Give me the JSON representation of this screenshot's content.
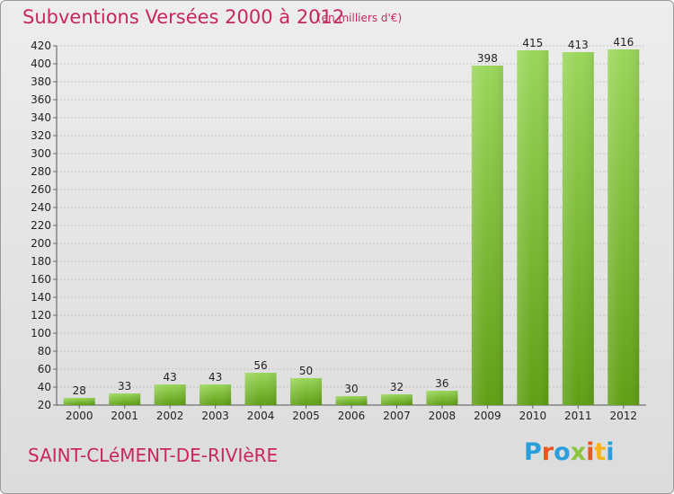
{
  "chart_data": {
    "type": "bar",
    "title": "Subventions Versées 2000 à 2012",
    "subtitle": "(en milliers d'€)",
    "categories": [
      "2000",
      "2001",
      "2002",
      "2003",
      "2004",
      "2005",
      "2006",
      "2007",
      "2008",
      "2009",
      "2010",
      "2011",
      "2012"
    ],
    "values": [
      28,
      33,
      43,
      43,
      56,
      50,
      30,
      32,
      36,
      398,
      415,
      413,
      416
    ],
    "ylim": [
      20,
      420
    ],
    "yticks": [
      20,
      40,
      60,
      80,
      100,
      120,
      140,
      160,
      180,
      200,
      220,
      240,
      260,
      280,
      300,
      320,
      340,
      360,
      380,
      400,
      420
    ],
    "grid": true,
    "bar_color": "#7cc62a",
    "bar_color_dark": "#5e9e14"
  },
  "footer": {
    "commune": "SAINT-CLéMENT-DE-RIVIèRE",
    "logo": "Proxiti"
  },
  "colors": {
    "title": "#c8275e"
  }
}
